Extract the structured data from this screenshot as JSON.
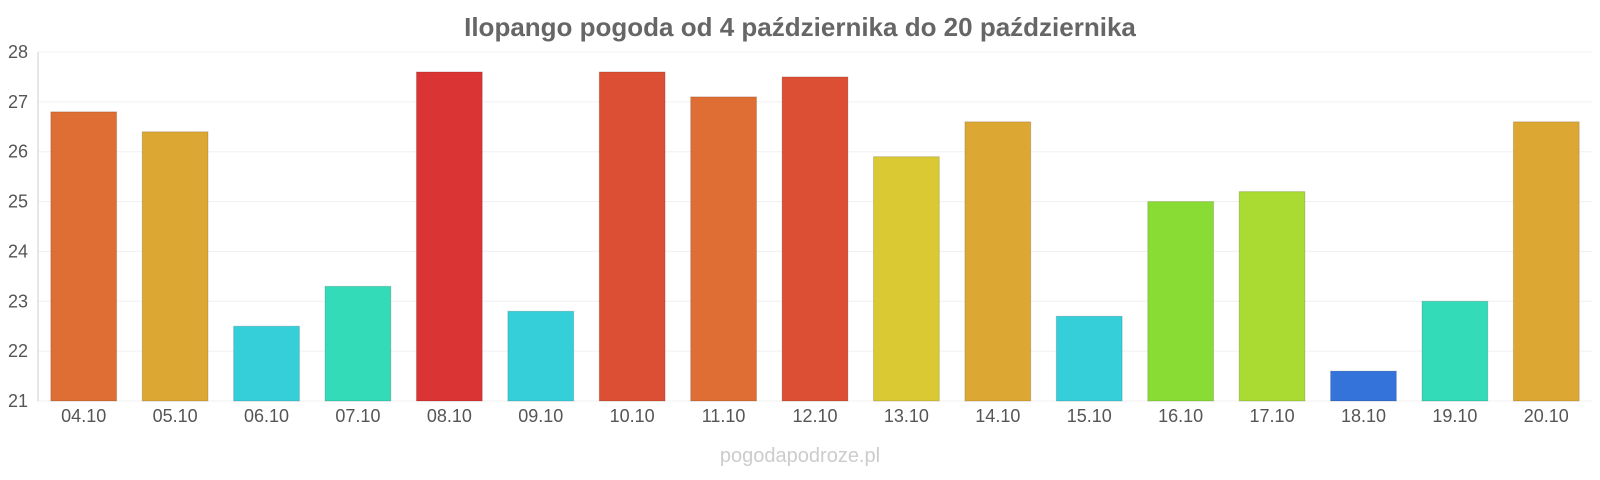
{
  "chart_data": {
    "type": "bar",
    "title": "Ilopango pogoda od 4 października do 20 października",
    "xlabel": "",
    "ylabel": "",
    "ylim": [
      21,
      28
    ],
    "yticks": [
      21,
      22,
      23,
      24,
      25,
      26,
      27,
      28
    ],
    "grid": true,
    "legend": "none",
    "categories": [
      "04.10",
      "05.10",
      "06.10",
      "07.10",
      "08.10",
      "09.10",
      "10.10",
      "11.10",
      "12.10",
      "13.10",
      "14.10",
      "15.10",
      "16.10",
      "17.10",
      "18.10",
      "19.10",
      "20.10"
    ],
    "values": [
      26.8,
      26.4,
      22.5,
      23.3,
      27.6,
      22.8,
      27.6,
      27.1,
      27.5,
      25.9,
      26.6,
      22.7,
      25.0,
      25.2,
      21.6,
      23.0,
      26.6
    ],
    "colors": [
      "#de6e33",
      "#dca833",
      "#35cfda",
      "#33dbb9",
      "#da3434",
      "#35cfda",
      "#dc4f34",
      "#de6e33",
      "#dc4f34",
      "#dac933",
      "#dca833",
      "#35cfda",
      "#88dc33",
      "#a9db33",
      "#3474da",
      "#33dbb9",
      "#dca833"
    ]
  },
  "watermark": "pogodapodroze.pl"
}
